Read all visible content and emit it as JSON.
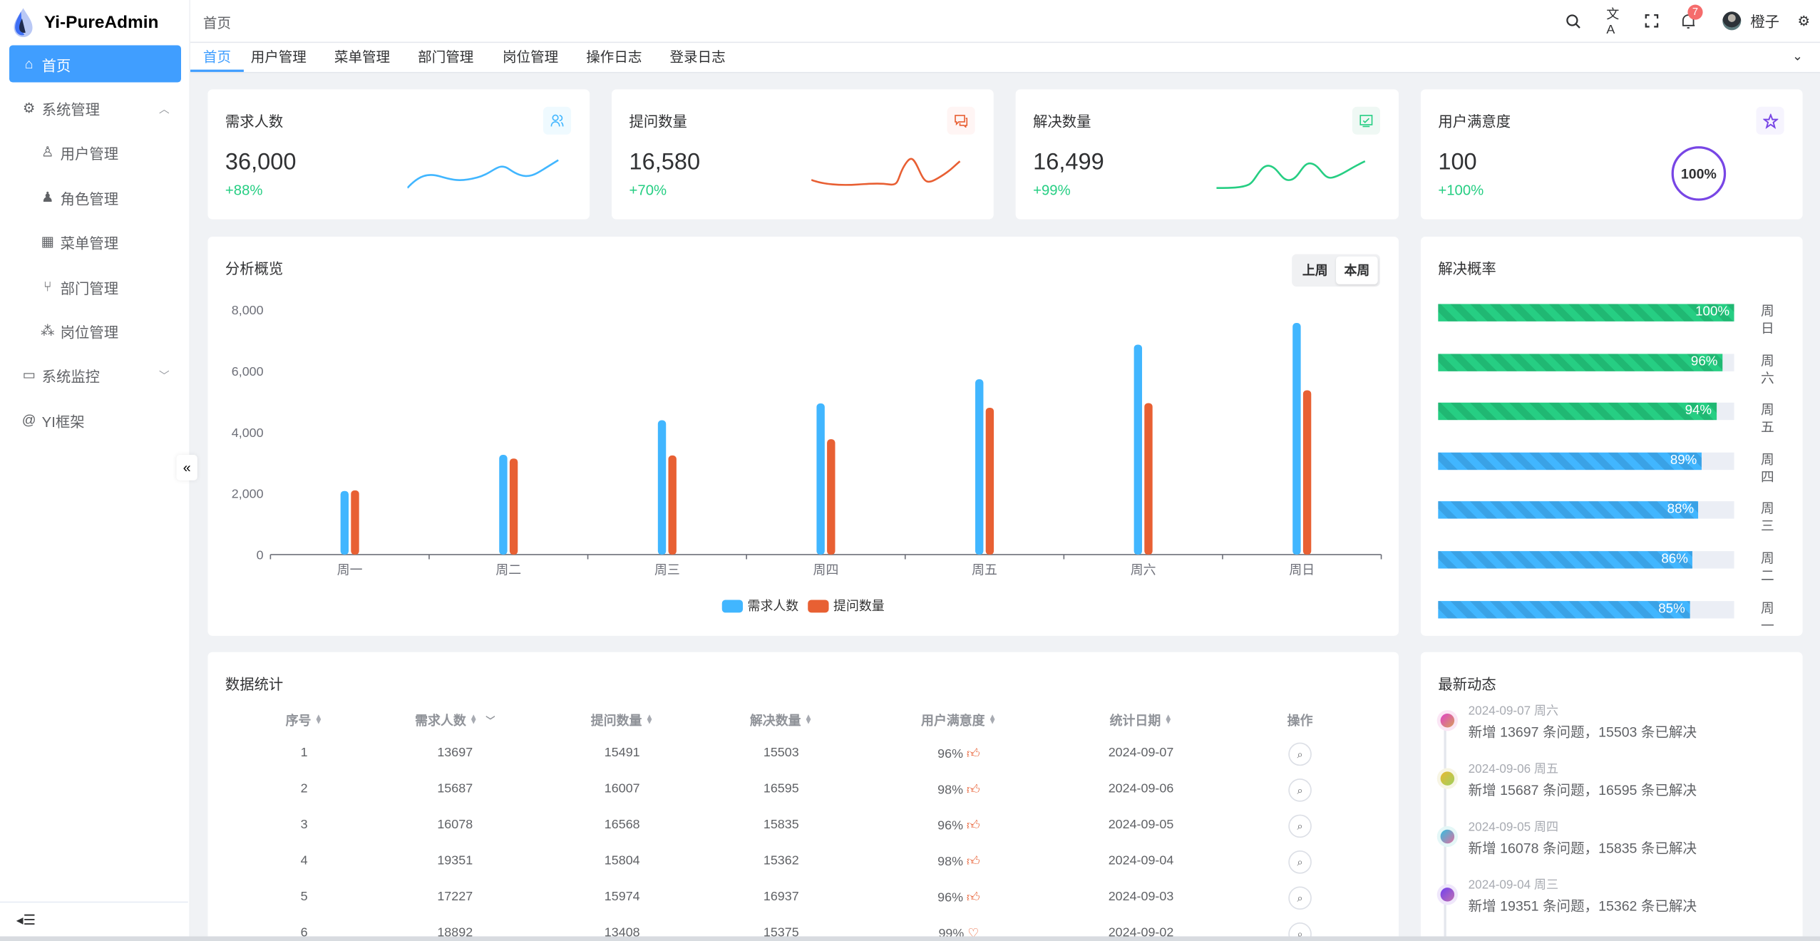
{
  "app": {
    "title": "Yi-PureAdmin"
  },
  "sidebar": {
    "items": [
      {
        "label": "首页",
        "icon": "home-icon",
        "active": true
      },
      {
        "label": "系统管理",
        "icon": "gear-icon",
        "expanded": true
      },
      {
        "label": "用户管理",
        "icon": "user-icon"
      },
      {
        "label": "角色管理",
        "icon": "role-icon"
      },
      {
        "label": "菜单管理",
        "icon": "grid-icon"
      },
      {
        "label": "部门管理",
        "icon": "branch-icon"
      },
      {
        "label": "岗位管理",
        "icon": "org-icon"
      },
      {
        "label": "系统监控",
        "icon": "monitor-icon",
        "expanded": false
      },
      {
        "label": "YI框架",
        "icon": "at-icon"
      }
    ]
  },
  "header": {
    "breadcrumb": "首页",
    "notification_count": "7",
    "username": "橙子"
  },
  "tags": [
    "首页",
    "用户管理",
    "菜单管理",
    "部门管理",
    "岗位管理",
    "操作日志",
    "登录日志"
  ],
  "stats": [
    {
      "title": "需求人数",
      "value": "36,000",
      "change": "+88%",
      "color": "#41b6ff",
      "icon": "users-icon"
    },
    {
      "title": "提问数量",
      "value": "16,580",
      "change": "+70%",
      "color": "#e85f33",
      "icon": "chat-icon"
    },
    {
      "title": "解决数量",
      "value": "16,499",
      "change": "+99%",
      "color": "#26ce83",
      "icon": "check-chart-icon"
    },
    {
      "title": "用户满意度",
      "value": "100",
      "change": "+100%",
      "color": "#7846e5",
      "icon": "star-icon",
      "ring": "100%"
    }
  ],
  "analysis": {
    "title": "分析概览",
    "toggle": [
      "上周",
      "本周"
    ],
    "selected": "本周"
  },
  "chart_data": {
    "type": "bar",
    "categories": [
      "周一",
      "周二",
      "周三",
      "周四",
      "周五",
      "周六",
      "周日"
    ],
    "series": [
      {
        "name": "需求人数",
        "color": "#41b6ff",
        "values": [
          2080,
          3260,
          4390,
          4940,
          5730,
          6860,
          7570
        ]
      },
      {
        "name": "提问数量",
        "color": "#e86033",
        "values": [
          2100,
          3140,
          3240,
          3770,
          4800,
          4950,
          5370
        ]
      }
    ],
    "yticks": [
      "0",
      "2,000",
      "4,000",
      "6,000",
      "8,000"
    ],
    "ylim": [
      0,
      8000
    ],
    "legend": "bottom",
    "grid": false
  },
  "solve_rate": {
    "title": "解决概率",
    "rows": [
      {
        "day": "周日",
        "percent": 100,
        "label": "100%",
        "color": "green"
      },
      {
        "day": "周六",
        "percent": 96,
        "label": "96%",
        "color": "green"
      },
      {
        "day": "周五",
        "percent": 94,
        "label": "94%",
        "color": "green"
      },
      {
        "day": "周四",
        "percent": 89,
        "label": "89%",
        "color": "blue"
      },
      {
        "day": "周三",
        "percent": 88,
        "label": "88%",
        "color": "blue"
      },
      {
        "day": "周二",
        "percent": 86,
        "label": "86%",
        "color": "blue"
      },
      {
        "day": "周一",
        "percent": 85,
        "label": "85%",
        "color": "blue"
      }
    ]
  },
  "table": {
    "title": "数据统计",
    "columns": [
      "序号",
      "需求人数",
      "提问数量",
      "解决数量",
      "用户满意度",
      "统计日期",
      "操作"
    ],
    "rows": [
      [
        "1",
        "13697",
        "15491",
        "15503",
        "96%",
        "2024-09-07"
      ],
      [
        "2",
        "15687",
        "16007",
        "16595",
        "98%",
        "2024-09-06"
      ],
      [
        "3",
        "16078",
        "16568",
        "15835",
        "96%",
        "2024-09-05"
      ],
      [
        "4",
        "19351",
        "15804",
        "15362",
        "98%",
        "2024-09-04"
      ],
      [
        "5",
        "17227",
        "15974",
        "16937",
        "96%",
        "2024-09-03"
      ],
      [
        "6",
        "18892",
        "13408",
        "15375",
        "99%",
        "2024-09-02"
      ]
    ]
  },
  "timeline": {
    "title": "最新动态",
    "items": [
      {
        "date": "2024-09-07 周六",
        "text": "新增 13697 条问题，15503 条已解决"
      },
      {
        "date": "2024-09-06 周五",
        "text": "新增 15687 条问题，16595 条已解决"
      },
      {
        "date": "2024-09-05 周四",
        "text": "新增 16078 条问题，15835 条已解决"
      },
      {
        "date": "2024-09-04 周三",
        "text": "新增 19351 条问题，15362 条已解决"
      }
    ]
  }
}
